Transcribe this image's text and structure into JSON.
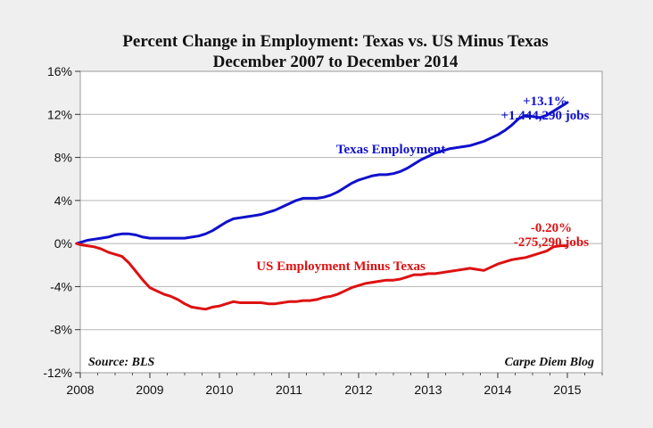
{
  "chart_data": {
    "type": "line",
    "title": "Percent Change in Employment: Texas vs. US Minus Texas",
    "subtitle": "December 2007 to December 2014",
    "xlabel": "",
    "ylabel": "",
    "xlim": [
      2008,
      2015.5
    ],
    "ylim": [
      -12,
      16
    ],
    "x_ticks": [
      {
        "value": 2008,
        "label": "2008"
      },
      {
        "value": 2009,
        "label": "2009"
      },
      {
        "value": 2010,
        "label": "2010"
      },
      {
        "value": 2011,
        "label": "2011"
      },
      {
        "value": 2012,
        "label": "2012"
      },
      {
        "value": 2013,
        "label": "2013"
      },
      {
        "value": 2014,
        "label": "2014"
      },
      {
        "value": 2015,
        "label": "2015"
      }
    ],
    "y_ticks": [
      {
        "value": 16,
        "label": "16%"
      },
      {
        "value": 12,
        "label": "12%"
      },
      {
        "value": 8,
        "label": "8%"
      },
      {
        "value": 4,
        "label": "4%"
      },
      {
        "value": 0,
        "label": "0%"
      },
      {
        "value": -4,
        "label": "-4%"
      },
      {
        "value": -8,
        "label": "-8%"
      },
      {
        "value": -12,
        "label": "-12%"
      }
    ],
    "grid": true,
    "series": [
      {
        "name": "Texas Employment",
        "color": "#1010cc",
        "x": [
          2007.95,
          2008.0,
          2008.1,
          2008.2,
          2008.3,
          2008.4,
          2008.5,
          2008.6,
          2008.7,
          2008.8,
          2008.9,
          2009.0,
          2009.1,
          2009.2,
          2009.3,
          2009.4,
          2009.5,
          2009.6,
          2009.7,
          2009.8,
          2009.9,
          2010.0,
          2010.1,
          2010.2,
          2010.3,
          2010.4,
          2010.5,
          2010.6,
          2010.7,
          2010.8,
          2010.9,
          2011.0,
          2011.1,
          2011.2,
          2011.3,
          2011.4,
          2011.5,
          2011.6,
          2011.7,
          2011.8,
          2011.9,
          2012.0,
          2012.1,
          2012.2,
          2012.3,
          2012.4,
          2012.5,
          2012.6,
          2012.7,
          2012.8,
          2012.9,
          2013.0,
          2013.1,
          2013.2,
          2013.3,
          2013.4,
          2013.5,
          2013.6,
          2013.7,
          2013.8,
          2013.9,
          2014.0,
          2014.1,
          2014.2,
          2014.3,
          2014.4,
          2014.5,
          2014.6,
          2014.7,
          2014.8,
          2014.9,
          2015.0
        ],
        "values": [
          0.0,
          0.1,
          0.3,
          0.4,
          0.5,
          0.6,
          0.8,
          0.9,
          0.9,
          0.8,
          0.6,
          0.5,
          0.5,
          0.5,
          0.5,
          0.5,
          0.5,
          0.6,
          0.7,
          0.9,
          1.2,
          1.6,
          2.0,
          2.3,
          2.4,
          2.5,
          2.6,
          2.7,
          2.9,
          3.1,
          3.4,
          3.7,
          4.0,
          4.2,
          4.2,
          4.2,
          4.3,
          4.5,
          4.8,
          5.2,
          5.6,
          5.9,
          6.1,
          6.3,
          6.4,
          6.4,
          6.5,
          6.7,
          7.0,
          7.4,
          7.8,
          8.1,
          8.4,
          8.6,
          8.8,
          8.9,
          9.0,
          9.1,
          9.3,
          9.5,
          9.8,
          10.1,
          10.5,
          11.0,
          11.6,
          11.9,
          11.8,
          11.7,
          11.9,
          12.3,
          12.7,
          13.1
        ]
      },
      {
        "name": "US Employment Minus Texas",
        "color": "#dd1111",
        "x": [
          2007.95,
          2008.0,
          2008.1,
          2008.2,
          2008.3,
          2008.4,
          2008.5,
          2008.6,
          2008.7,
          2008.8,
          2008.9,
          2009.0,
          2009.1,
          2009.2,
          2009.3,
          2009.4,
          2009.5,
          2009.6,
          2009.7,
          2009.8,
          2009.9,
          2010.0,
          2010.1,
          2010.2,
          2010.3,
          2010.4,
          2010.5,
          2010.6,
          2010.7,
          2010.8,
          2010.9,
          2011.0,
          2011.1,
          2011.2,
          2011.3,
          2011.4,
          2011.5,
          2011.6,
          2011.7,
          2011.8,
          2011.9,
          2012.0,
          2012.1,
          2012.2,
          2012.3,
          2012.4,
          2012.5,
          2012.6,
          2012.7,
          2012.8,
          2012.9,
          2013.0,
          2013.1,
          2013.2,
          2013.3,
          2013.4,
          2013.5,
          2013.6,
          2013.7,
          2013.8,
          2013.9,
          2014.0,
          2014.1,
          2014.2,
          2014.3,
          2014.4,
          2014.5,
          2014.6,
          2014.7,
          2014.8,
          2014.9,
          2015.0
        ],
        "values": [
          0.0,
          -0.1,
          -0.2,
          -0.3,
          -0.5,
          -0.8,
          -1.0,
          -1.2,
          -1.8,
          -2.6,
          -3.4,
          -4.1,
          -4.4,
          -4.7,
          -4.9,
          -5.2,
          -5.6,
          -5.9,
          -6.0,
          -6.1,
          -5.9,
          -5.8,
          -5.6,
          -5.4,
          -5.5,
          -5.5,
          -5.5,
          -5.5,
          -5.6,
          -5.6,
          -5.5,
          -5.4,
          -5.4,
          -5.3,
          -5.3,
          -5.2,
          -5.0,
          -4.9,
          -4.7,
          -4.4,
          -4.1,
          -3.9,
          -3.7,
          -3.6,
          -3.5,
          -3.4,
          -3.4,
          -3.3,
          -3.1,
          -2.9,
          -2.9,
          -2.8,
          -2.8,
          -2.7,
          -2.6,
          -2.5,
          -2.4,
          -2.3,
          -2.4,
          -2.5,
          -2.2,
          -1.9,
          -1.7,
          -1.5,
          -1.4,
          -1.3,
          -1.1,
          -0.9,
          -0.7,
          -0.3,
          -0.2,
          -0.2
        ]
      }
    ],
    "annotations": {
      "texas_label": "Texas Employment",
      "us_label": "US Employment Minus Texas",
      "texas_pct": "+13.1%",
      "texas_jobs": "+1,444,290 jobs",
      "us_pct": "-0.20%",
      "us_jobs": "-275,290 jobs",
      "source": "Source: BLS",
      "blog": "Carpe Diem Blog"
    },
    "colors": {
      "background": "#efefef",
      "plot_background": "#ffffff",
      "grid": "#b5b5b5",
      "texas": "#1010cc",
      "us": "#dd1111"
    }
  }
}
